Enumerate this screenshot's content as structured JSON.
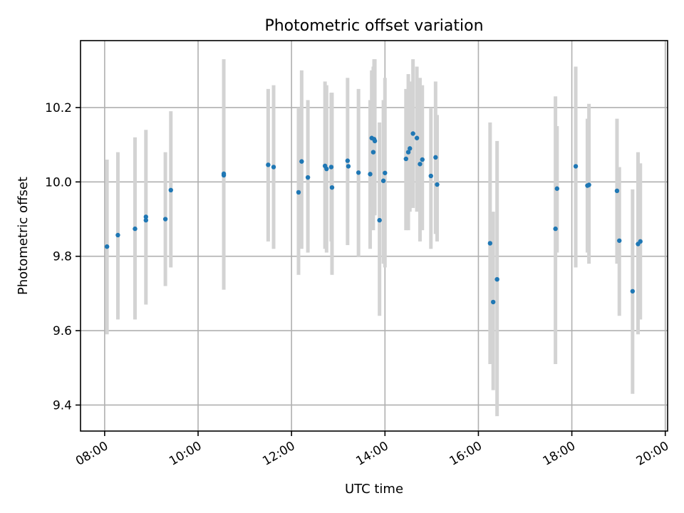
{
  "chart_data": {
    "type": "scatter",
    "title": "Photometric offset variation",
    "xlabel": "UTC time",
    "ylabel": "Photometric offset",
    "x_unit": "UTC hour",
    "xlim": [
      "07:29",
      "20:03"
    ],
    "ylim": [
      9.33,
      10.38
    ],
    "x_ticks": [
      "08:00",
      "10:00",
      "12:00",
      "14:00",
      "16:00",
      "18:00",
      "20:00"
    ],
    "y_ticks": [
      "9.4",
      "9.6",
      "9.8",
      "10.0",
      "10.2"
    ],
    "grid": true,
    "colors": {
      "points": "#1f77b4",
      "errorbars": "#d3d3d3",
      "grid": "#b0b0b0"
    },
    "points": [
      {
        "t": "08:03",
        "y": 9.826,
        "lo": 9.59,
        "hi": 10.06
      },
      {
        "t": "08:17",
        "y": 9.857,
        "lo": 9.63,
        "hi": 10.08
      },
      {
        "t": "08:39",
        "y": 9.874,
        "lo": 9.63,
        "hi": 10.12
      },
      {
        "t": "08:53",
        "y": 9.906,
        "lo": 9.67,
        "hi": 10.14
      },
      {
        "t": "08:53",
        "y": 9.897
      },
      {
        "t": "09:18",
        "y": 9.9,
        "lo": 9.72,
        "hi": 10.08
      },
      {
        "t": "09:25",
        "y": 9.978,
        "lo": 9.77,
        "hi": 10.19
      },
      {
        "t": "10:33",
        "y": 10.018,
        "lo": 9.71,
        "hi": 10.33
      },
      {
        "t": "10:33",
        "y": 10.022
      },
      {
        "t": "11:30",
        "y": 10.046,
        "lo": 9.84,
        "hi": 10.25
      },
      {
        "t": "11:37",
        "y": 10.04,
        "lo": 9.82,
        "hi": 10.26
      },
      {
        "t": "12:09",
        "y": 9.972,
        "lo": 9.75,
        "hi": 10.2
      },
      {
        "t": "12:13",
        "y": 10.055,
        "lo": 9.82,
        "hi": 10.3
      },
      {
        "t": "12:21",
        "y": 10.012,
        "lo": 9.81,
        "hi": 10.22
      },
      {
        "t": "12:43",
        "y": 10.043,
        "lo": 9.82,
        "hi": 10.27
      },
      {
        "t": "12:45",
        "y": 10.035,
        "lo": 9.81,
        "hi": 10.26
      },
      {
        "t": "12:51",
        "y": 10.04,
        "lo": 9.84,
        "hi": 10.24
      },
      {
        "t": "12:52",
        "y": 9.985,
        "lo": 9.75,
        "hi": 10.24
      },
      {
        "t": "13:12",
        "y": 10.057,
        "lo": 9.83,
        "hi": 10.28
      },
      {
        "t": "13:13",
        "y": 10.042
      },
      {
        "t": "13:26",
        "y": 10.025,
        "lo": 9.8,
        "hi": 10.25
      },
      {
        "t": "13:41",
        "y": 10.021,
        "lo": 9.82,
        "hi": 10.22
      },
      {
        "t": "13:43",
        "y": 10.118,
        "lo": 9.93,
        "hi": 10.3
      },
      {
        "t": "13:45",
        "y": 10.08,
        "lo": 9.87,
        "hi": 10.31
      },
      {
        "t": "13:46",
        "y": 10.115,
        "lo": 9.95,
        "hi": 10.33
      },
      {
        "t": "13:47",
        "y": 10.11,
        "lo": 9.91,
        "hi": 10.33
      },
      {
        "t": "13:53",
        "y": 9.897,
        "lo": 9.64,
        "hi": 10.16
      },
      {
        "t": "13:58",
        "y": 10.003,
        "lo": 9.78,
        "hi": 10.22
      },
      {
        "t": "14:00",
        "y": 10.024,
        "lo": 9.77,
        "hi": 10.28
      },
      {
        "t": "14:27",
        "y": 10.062,
        "lo": 9.87,
        "hi": 10.25
      },
      {
        "t": "14:30",
        "y": 10.08,
        "lo": 9.87,
        "hi": 10.29
      },
      {
        "t": "14:32",
        "y": 10.09,
        "lo": 9.92,
        "hi": 10.27
      },
      {
        "t": "14:36",
        "y": 10.13,
        "lo": 9.93,
        "hi": 10.33
      },
      {
        "t": "14:41",
        "y": 10.118,
        "lo": 9.92,
        "hi": 10.31
      },
      {
        "t": "14:45",
        "y": 10.048,
        "lo": 9.84,
        "hi": 10.28
      },
      {
        "t": "14:48",
        "y": 10.06,
        "lo": 9.87,
        "hi": 10.26
      },
      {
        "t": "14:59",
        "y": 10.016,
        "lo": 9.82,
        "hi": 10.2
      },
      {
        "t": "15:05",
        "y": 10.066,
        "lo": 9.86,
        "hi": 10.27
      },
      {
        "t": "15:07",
        "y": 9.993,
        "lo": 9.84,
        "hi": 10.18
      },
      {
        "t": "16:15",
        "y": 9.835,
        "lo": 9.51,
        "hi": 10.16
      },
      {
        "t": "16:19",
        "y": 9.677,
        "lo": 9.44,
        "hi": 9.92
      },
      {
        "t": "16:24",
        "y": 9.738,
        "lo": 9.37,
        "hi": 10.11
      },
      {
        "t": "17:39",
        "y": 9.874,
        "lo": 9.51,
        "hi": 10.23
      },
      {
        "t": "17:41",
        "y": 9.982,
        "lo": 9.81,
        "hi": 10.15
      },
      {
        "t": "18:05",
        "y": 10.042,
        "lo": 9.77,
        "hi": 10.31
      },
      {
        "t": "18:20",
        "y": 9.99,
        "lo": 9.81,
        "hi": 10.17
      },
      {
        "t": "18:22",
        "y": 9.992,
        "lo": 9.78,
        "hi": 10.21
      },
      {
        "t": "18:58",
        "y": 9.976,
        "lo": 9.78,
        "hi": 10.17
      },
      {
        "t": "19:01",
        "y": 9.842,
        "lo": 9.64,
        "hi": 10.04
      },
      {
        "t": "19:18",
        "y": 9.706,
        "lo": 9.43,
        "hi": 9.98
      },
      {
        "t": "19:25",
        "y": 9.833,
        "lo": 9.59,
        "hi": 10.08
      },
      {
        "t": "19:28",
        "y": 9.84,
        "lo": 9.63,
        "hi": 10.05
      }
    ]
  }
}
